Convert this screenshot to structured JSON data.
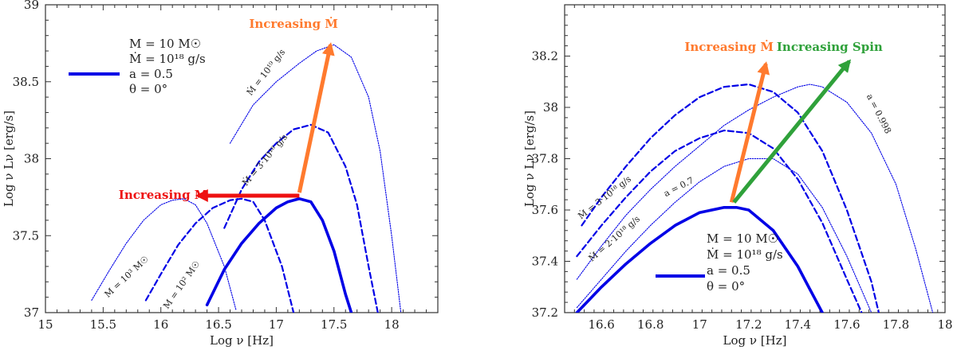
{
  "chart_data": [
    {
      "type": "line",
      "title": "",
      "xlabel": "Log ν  [Hz]",
      "ylabel": "Log ν Lν  [erg/s]",
      "xlim": [
        15,
        18.4
      ],
      "ylim": [
        37,
        39
      ],
      "xticks": [
        15,
        15.5,
        16,
        16.5,
        17,
        17.5,
        18
      ],
      "xtick_labels": [
        "15",
        "15.5",
        "16",
        "16.5",
        "17",
        "17.5",
        "18"
      ],
      "yticks": [
        37,
        37.5,
        38,
        38.5,
        39
      ],
      "ytick_labels": [
        "37",
        "37.5",
        "38",
        "38.5",
        "39"
      ],
      "legend": {
        "lines": [
          "M = 10 M☉",
          "Ṁ = 10¹⁸ g/s",
          "a = 0.5",
          "θ = 0°"
        ],
        "placement": "top-left",
        "color": "#0000e6"
      },
      "series": [
        {
          "name": "reference",
          "label": "",
          "style": "thick",
          "x": [
            16.4,
            16.55,
            16.7,
            16.85,
            17.0,
            17.1,
            17.2,
            17.3,
            17.4,
            17.5,
            17.6,
            17.65
          ],
          "y": [
            37.05,
            37.28,
            37.45,
            37.58,
            37.68,
            37.72,
            37.74,
            37.72,
            37.6,
            37.4,
            37.12,
            37.0
          ]
        },
        {
          "name": "Mdot_3e18",
          "label": "Ṁ = 3·10¹⁸ g/s",
          "style": "dashed",
          "x": [
            16.55,
            16.7,
            16.85,
            17.0,
            17.15,
            17.3,
            17.45,
            17.6,
            17.7,
            17.8,
            17.88
          ],
          "y": [
            37.55,
            37.8,
            37.98,
            38.1,
            38.19,
            38.22,
            38.17,
            37.95,
            37.7,
            37.3,
            37.0
          ]
        },
        {
          "name": "Mdot_1e19",
          "label": "Ṁ = 10¹⁹ g/s",
          "style": "dotted",
          "x": [
            16.6,
            16.8,
            17.0,
            17.2,
            17.35,
            17.5,
            17.65,
            17.8,
            17.9,
            18.0,
            18.08
          ],
          "y": [
            38.1,
            38.35,
            38.5,
            38.62,
            38.7,
            38.74,
            38.66,
            38.4,
            38.05,
            37.5,
            37.0
          ]
        },
        {
          "name": "M_100",
          "label": "M = 10² M☉",
          "style": "dashed",
          "x": [
            15.87,
            16.0,
            16.15,
            16.3,
            16.45,
            16.6,
            16.7,
            16.8,
            16.9,
            17.05,
            17.15
          ],
          "y": [
            37.08,
            37.25,
            37.44,
            37.58,
            37.68,
            37.73,
            37.74,
            37.72,
            37.6,
            37.3,
            37.0
          ]
        },
        {
          "name": "M_1000",
          "label": "M = 10³ M☉",
          "style": "dotted",
          "x": [
            15.4,
            15.55,
            15.7,
            15.85,
            16.0,
            16.1,
            16.2,
            16.3,
            16.4,
            16.55,
            16.65
          ],
          "y": [
            37.08,
            37.27,
            37.45,
            37.6,
            37.7,
            37.73,
            37.74,
            37.7,
            37.58,
            37.3,
            37.02
          ]
        }
      ],
      "arrows": [
        {
          "label": "Increasing Ṁ",
          "color": "#ff7a2e",
          "from": [
            17.2,
            37.78
          ],
          "to": [
            17.47,
            38.74
          ]
        },
        {
          "label": "Increasing M",
          "color": "#ee1111",
          "from": [
            17.2,
            37.76
          ],
          "to": [
            16.32,
            37.76
          ]
        }
      ]
    },
    {
      "type": "line",
      "title": "",
      "xlabel": "Log ν  [Hz]",
      "ylabel": "Log ν Lν  [erg/s]",
      "xlim": [
        16.45,
        18.0
      ],
      "ylim": [
        37.2,
        38.4
      ],
      "xticks": [
        16.6,
        16.8,
        17,
        17.2,
        17.4,
        17.6,
        17.8,
        18
      ],
      "xtick_labels": [
        "16.6",
        "16.8",
        "17",
        "17.2",
        "17.4",
        "17.6",
        "17.8",
        "18"
      ],
      "yticks": [
        37.2,
        37.4,
        37.6,
        37.8,
        38,
        38.2
      ],
      "ytick_labels": [
        "37.2",
        "37.4",
        "37.6",
        "37.8",
        "38",
        "38.2"
      ],
      "legend": {
        "lines": [
          "M = 10 M☉",
          "Ṁ = 10¹⁸ g/s",
          "a = 0.5",
          "θ = 0°"
        ],
        "placement": "bottom-center",
        "color": "#0000e6"
      },
      "series": [
        {
          "name": "reference",
          "label": "",
          "style": "thick",
          "x": [
            16.5,
            16.6,
            16.7,
            16.8,
            16.9,
            17.0,
            17.1,
            17.15,
            17.2,
            17.3,
            17.4,
            17.45,
            17.5
          ],
          "y": [
            37.2,
            37.3,
            37.39,
            37.47,
            37.54,
            37.59,
            37.61,
            37.61,
            37.6,
            37.52,
            37.38,
            37.29,
            37.2
          ]
        },
        {
          "name": "Mdot_2e18",
          "label": "Ṁ = 2·10¹⁸ g/s",
          "style": "dashed",
          "x": [
            16.5,
            16.6,
            16.7,
            16.8,
            16.9,
            17.0,
            17.1,
            17.2,
            17.3,
            17.4,
            17.5,
            17.6,
            17.66
          ],
          "y": [
            37.42,
            37.54,
            37.65,
            37.75,
            37.83,
            37.88,
            37.91,
            37.9,
            37.84,
            37.72,
            37.55,
            37.33,
            37.2
          ]
        },
        {
          "name": "Mdot_3e18",
          "label": "Ṁ = 3·10¹⁸ g/s",
          "style": "dashed",
          "x": [
            16.52,
            16.6,
            16.7,
            16.8,
            16.9,
            17.0,
            17.1,
            17.2,
            17.3,
            17.4,
            17.5,
            17.6,
            17.7,
            17.73
          ],
          "y": [
            37.54,
            37.65,
            37.77,
            37.88,
            37.97,
            38.04,
            38.08,
            38.09,
            38.06,
            37.98,
            37.83,
            37.6,
            37.32,
            37.2
          ]
        },
        {
          "name": "a_0.7",
          "label": "a = 0.7",
          "style": "dotted",
          "x": [
            16.5,
            16.6,
            16.7,
            16.8,
            16.9,
            17.0,
            17.1,
            17.2,
            17.3,
            17.4,
            17.5,
            17.6,
            17.7
          ],
          "y": [
            37.22,
            37.33,
            37.44,
            37.54,
            37.63,
            37.71,
            37.77,
            37.8,
            37.8,
            37.74,
            37.61,
            37.42,
            37.2
          ]
        },
        {
          "name": "a_0.998",
          "label": "a = 0.998",
          "style": "dotted",
          "x": [
            16.5,
            16.6,
            16.7,
            16.8,
            16.9,
            17.0,
            17.1,
            17.2,
            17.3,
            17.4,
            17.45,
            17.5,
            17.6,
            17.7,
            17.8,
            17.88,
            17.95
          ],
          "y": [
            37.33,
            37.46,
            37.58,
            37.68,
            37.77,
            37.85,
            37.93,
            37.99,
            38.04,
            38.08,
            38.09,
            38.08,
            38.02,
            37.9,
            37.7,
            37.45,
            37.2
          ]
        }
      ],
      "arrows": [
        {
          "label": "Increasing Ṁ",
          "color": "#ff7a2e",
          "from": [
            17.13,
            37.63
          ],
          "to": [
            17.27,
            38.17
          ]
        },
        {
          "label": "Increasing Spin",
          "color": "#2fa13a",
          "from": [
            17.14,
            37.63
          ],
          "to": [
            17.61,
            38.18
          ]
        }
      ]
    }
  ]
}
